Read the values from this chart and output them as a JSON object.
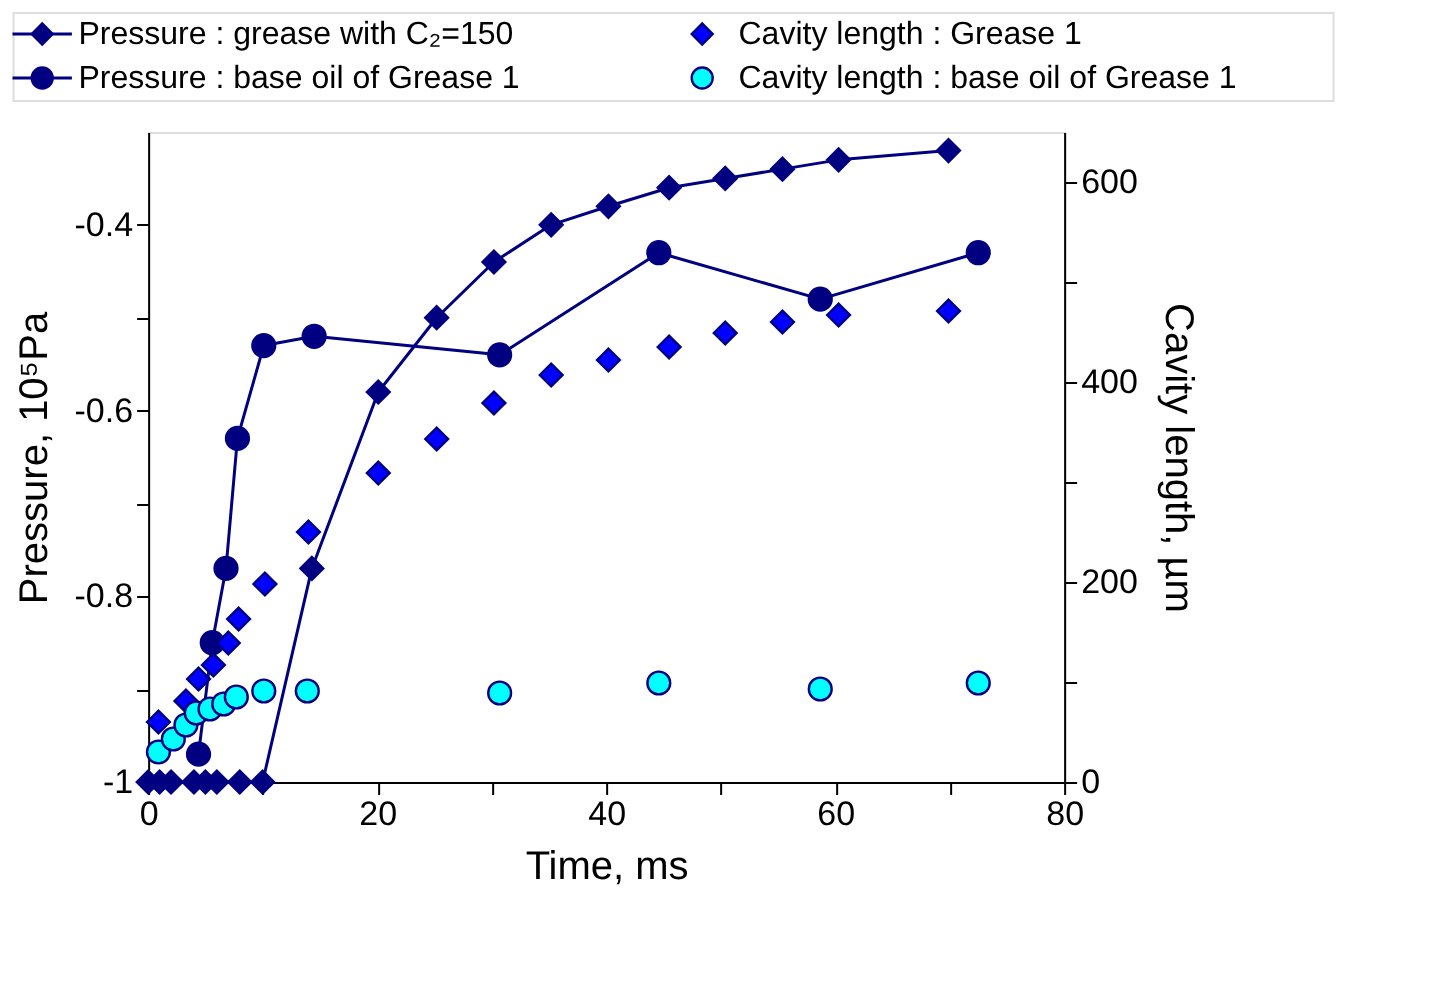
{
  "chart_data": {
    "type": "line",
    "xlabel": "Time, ms",
    "ylabel": "Pressure, 10⁵Pa",
    "y2label": "Cavity length, µm",
    "xlim": [
      0,
      80
    ],
    "xticks": [
      0,
      {
        "value": 10,
        "label": null
      },
      20,
      {
        "value": 30,
        "label": null
      },
      40,
      {
        "value": 50,
        "label": null
      },
      60,
      {
        "value": 70,
        "label": null
      },
      80
    ],
    "ylim": [
      -1,
      -0.3
    ],
    "yticks": [
      -1,
      {
        "value": -0.9,
        "label": null
      },
      -0.8,
      {
        "value": -0.7,
        "label": null
      },
      -0.6,
      {
        "value": -0.5,
        "label": null
      },
      -0.4
    ],
    "y2lim": [
      0,
      650
    ],
    "y2ticks": [
      0,
      {
        "value": 100,
        "label": null
      },
      200,
      {
        "value": 300,
        "label": null
      },
      400,
      {
        "value": 500,
        "label": null
      },
      600
    ],
    "grid": false,
    "legend": "top",
    "series": [
      {
        "name": "Pressure : grease with C₂=150",
        "marker": "diamond",
        "color": "#000080",
        "x": [
          0,
          1,
          2,
          4,
          5,
          6,
          8,
          10,
          14.3,
          20.1,
          25.2,
          30.2,
          35.2,
          40.2,
          45.5,
          50.4,
          55.4,
          60.3,
          69.9
        ],
        "values": [
          -1,
          -1,
          -1,
          -1,
          -1,
          -1,
          -1,
          -1,
          -0.77,
          -0.58,
          -0.5,
          -0.44,
          -0.4,
          -0.38,
          -0.36,
          -0.35,
          -0.34,
          -0.33,
          -0.32
        ]
      },
      {
        "name": "Cavity length : Grease 1",
        "type": "scatter",
        "marker": "diamond",
        "axis": "y2",
        "color": "#0000ff",
        "x": [
          0.9,
          3.3,
          4.4,
          5.7,
          7.0,
          7.9,
          10.2,
          14.0,
          20.1,
          25.2,
          30.2,
          35.2,
          40.2,
          45.5,
          50.4,
          55.4,
          60.3,
          69.9
        ],
        "values": [
          60,
          81,
          103,
          117,
          139,
          163,
          198,
          250,
          309,
          343,
          379,
          407,
          422,
          435,
          449,
          460,
          467,
          471
        ]
      },
      {
        "name": "Pressure : base oil of Grease 1",
        "marker": "circle",
        "color": "#000080",
        "x": [
          4.4,
          5.6,
          6.8,
          7.8,
          10.1,
          14.5,
          30.7,
          44.6,
          58.7,
          72.5
        ],
        "values": [
          -0.97,
          -0.85,
          -0.77,
          -0.63,
          -0.53,
          -0.52,
          -0.54,
          -0.43,
          -0.48,
          -0.43
        ]
      },
      {
        "name": "Cavity length : base oil of Grease 1",
        "type": "scatter",
        "marker": "circle",
        "axis": "y2",
        "color": "#00ffff",
        "x": [
          0.9,
          2.2,
          3.3,
          4.2,
          5.4,
          6.6,
          7.7,
          10.1,
          13.9,
          30.7,
          44.6,
          58.7,
          72.5
        ],
        "values": [
          30,
          43,
          57,
          69,
          73,
          78,
          85,
          91,
          91,
          89,
          99,
          93,
          99
        ]
      }
    ]
  }
}
